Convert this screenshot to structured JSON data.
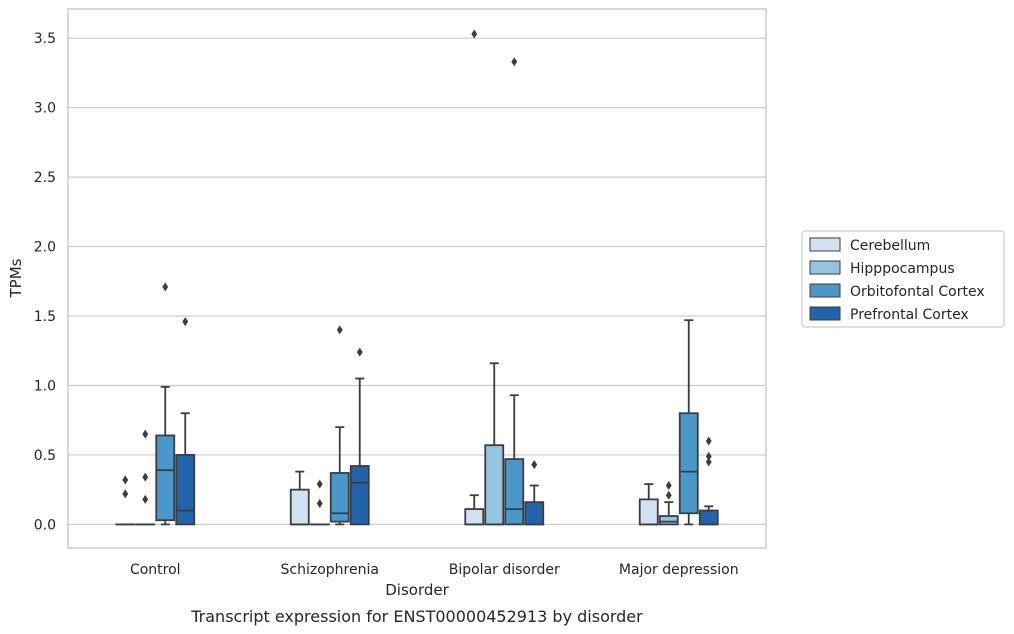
{
  "chart_data": {
    "type": "box",
    "caption": "Transcript expression for ENST00000452913 by disorder",
    "xlabel": "Disorder",
    "ylabel": "TPMs",
    "ylim": [
      -0.17,
      3.71
    ],
    "yticks": [
      "0.0",
      "0.5",
      "1.0",
      "1.5",
      "2.0",
      "2.5",
      "3.0",
      "3.5"
    ],
    "grid": "horizontal",
    "legend_position": "right",
    "categories": [
      "Control",
      "Schizophrenia",
      "Bipolar disorder",
      "Major depression"
    ],
    "series": [
      {
        "name": "Cerebellum",
        "color": "#d0e1f2",
        "boxes": [
          {
            "min": 0.0,
            "q1": 0.0,
            "median": 0.0,
            "q3": 0.0,
            "max": 0.0,
            "outliers": [
              0.32,
              0.22
            ]
          },
          {
            "min": 0.0,
            "q1": 0.0,
            "median": 0.0,
            "q3": 0.25,
            "max": 0.38,
            "outliers": []
          },
          {
            "min": 0.0,
            "q1": 0.0,
            "median": 0.0,
            "q3": 0.11,
            "max": 0.21,
            "outliers": [
              3.53
            ]
          },
          {
            "min": 0.0,
            "q1": 0.0,
            "median": 0.0,
            "q3": 0.18,
            "max": 0.29,
            "outliers": []
          }
        ]
      },
      {
        "name": "Hipppocampus",
        "color": "#94c4df",
        "boxes": [
          {
            "min": 0.0,
            "q1": 0.0,
            "median": 0.0,
            "q3": 0.0,
            "max": 0.0,
            "outliers": [
              0.65,
              0.34,
              0.18
            ]
          },
          {
            "min": 0.0,
            "q1": 0.0,
            "median": 0.0,
            "q3": 0.0,
            "max": 0.0,
            "outliers": [
              0.29,
              0.15
            ]
          },
          {
            "min": 0.0,
            "q1": 0.0,
            "median": 0.0,
            "q3": 0.57,
            "max": 1.16,
            "outliers": []
          },
          {
            "min": 0.0,
            "q1": 0.0,
            "median": 0.02,
            "q3": 0.06,
            "max": 0.16,
            "outliers": [
              0.28,
              0.21
            ]
          }
        ]
      },
      {
        "name": "Orbitofontal Cortex",
        "color": "#4a98c9",
        "boxes": [
          {
            "min": 0.0,
            "q1": 0.03,
            "median": 0.39,
            "q3": 0.64,
            "max": 0.99,
            "outliers": [
              1.71
            ]
          },
          {
            "min": 0.0,
            "q1": 0.02,
            "median": 0.08,
            "q3": 0.37,
            "max": 0.7,
            "outliers": [
              1.4
            ]
          },
          {
            "min": 0.0,
            "q1": 0.0,
            "median": 0.11,
            "q3": 0.47,
            "max": 0.93,
            "outliers": [
              3.33
            ]
          },
          {
            "min": 0.0,
            "q1": 0.08,
            "median": 0.38,
            "q3": 0.8,
            "max": 1.47,
            "outliers": []
          }
        ]
      },
      {
        "name": "Prefrontal Cortex",
        "color": "#2164ab",
        "boxes": [
          {
            "min": 0.0,
            "q1": 0.0,
            "median": 0.1,
            "q3": 0.5,
            "max": 0.8,
            "outliers": [
              1.46
            ]
          },
          {
            "min": 0.0,
            "q1": 0.0,
            "median": 0.3,
            "q3": 0.42,
            "max": 1.05,
            "outliers": [
              1.24
            ]
          },
          {
            "min": 0.0,
            "q1": 0.0,
            "median": 0.0,
            "q3": 0.16,
            "max": 0.28,
            "outliers": [
              0.43
            ]
          },
          {
            "min": 0.0,
            "q1": 0.0,
            "median": 0.0,
            "q3": 0.1,
            "max": 0.13,
            "outliers": [
              0.6,
              0.49,
              0.45
            ]
          }
        ]
      }
    ]
  }
}
